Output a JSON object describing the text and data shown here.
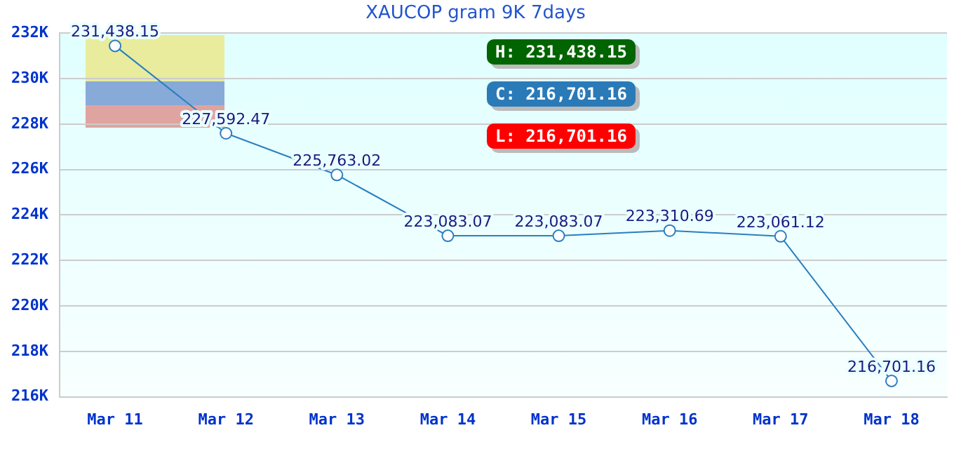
{
  "chart_data": {
    "type": "line",
    "title": "XAUCOP gram 9K 7days",
    "categories": [
      "Mar 11",
      "Mar 12",
      "Mar 13",
      "Mar 14",
      "Mar 15",
      "Mar 16",
      "Mar 17",
      "Mar 18"
    ],
    "series": [
      {
        "color": "#2a7fc0",
        "values": [
          231438.15,
          227592.47,
          225763.02,
          223083.07,
          223083.07,
          223310.69,
          223061.12,
          216701.16
        ],
        "value_labels": [
          "231,438.15",
          "227,592.47",
          "225,763.02",
          "223,083.07",
          "223,083.07",
          "223,310.69",
          "223,061.12",
          "216,701.16"
        ]
      }
    ],
    "ylim": [
      216000,
      232000
    ],
    "yticks": [
      {
        "value": 216000,
        "label": "216K"
      },
      {
        "value": 218000,
        "label": "218K"
      },
      {
        "value": 220000,
        "label": "220K"
      },
      {
        "value": 222000,
        "label": "222K"
      },
      {
        "value": 224000,
        "label": "224K"
      },
      {
        "value": 226000,
        "label": "226K"
      },
      {
        "value": 228000,
        "label": "228K"
      },
      {
        "value": 230000,
        "label": "230K"
      },
      {
        "value": 232000,
        "label": "232K"
      }
    ],
    "grid": "y",
    "legend": false,
    "marker": "circle",
    "line_style": "solid",
    "annotations": [
      "H: 231,438.15",
      "C: 216,701.16",
      "L: 216,701.16"
    ]
  }
}
